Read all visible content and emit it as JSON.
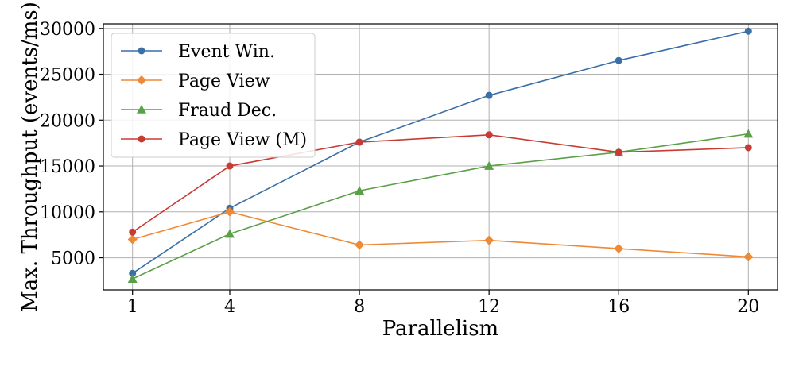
{
  "chart_data": {
    "type": "line",
    "xlabel": "Parallelism",
    "ylabel": "Max. Throughput (events/ms)",
    "x": [
      1,
      4,
      8,
      12,
      16,
      20
    ],
    "xticks": [
      "1",
      "4",
      "8",
      "12",
      "16",
      "20"
    ],
    "yticks": [
      "5000",
      "10000",
      "15000",
      "20000",
      "25000",
      "30000"
    ],
    "xlim": [
      0.1,
      20.9
    ],
    "ylim": [
      1500,
      30500
    ],
    "grid": true,
    "legend_position": "top-left",
    "series": [
      {
        "name": "Event Win.",
        "color": "#3a6fa8",
        "marker": "circle",
        "values": [
          3300,
          10400,
          17600,
          22700,
          26500,
          29700
        ]
      },
      {
        "name": "Page View",
        "color": "#ee8a35",
        "marker": "diamond",
        "values": [
          7000,
          10000,
          6400,
          6900,
          6000,
          5100
        ]
      },
      {
        "name": "Fraud Dec.",
        "color": "#5aa047",
        "marker": "triangle",
        "values": [
          2700,
          7600,
          12300,
          15000,
          16500,
          18500
        ]
      },
      {
        "name": "Page View (M)",
        "color": "#c83b32",
        "marker": "circle",
        "values": [
          7800,
          15000,
          17600,
          18400,
          16500,
          17000
        ]
      }
    ]
  }
}
